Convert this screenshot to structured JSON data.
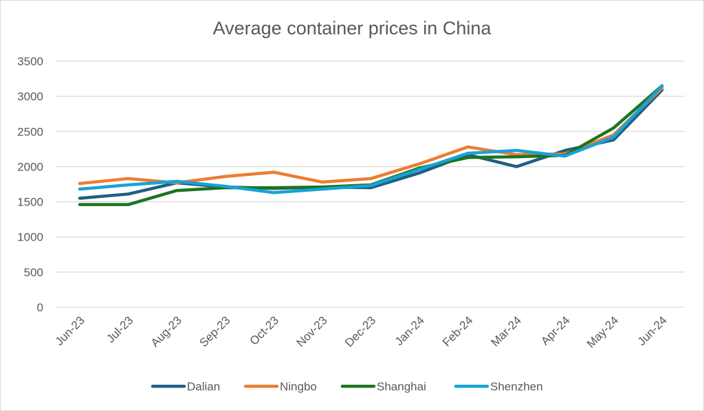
{
  "chart_data": {
    "type": "line",
    "title": "Average container prices in China",
    "xlabel": "",
    "ylabel": "",
    "ylim": [
      0,
      3500
    ],
    "yticks": [
      0,
      500,
      1000,
      1500,
      2000,
      2500,
      3000,
      3500
    ],
    "grid": true,
    "legend_position": "bottom",
    "categories": [
      "Jun-23",
      "Jul-23",
      "Aug-23",
      "Sep-23",
      "Oct-23",
      "Nov-23",
      "Dec-23",
      "Jan-24",
      "Feb-24",
      "Mar-24",
      "Apr-24",
      "May-24",
      "Jun-24"
    ],
    "series": [
      {
        "name": "Dalian",
        "color": "#1f5f82",
        "values": [
          1550,
          1610,
          1770,
          1710,
          1690,
          1710,
          1700,
          1910,
          2170,
          2000,
          2230,
          2380,
          3090
        ]
      },
      {
        "name": "Ningbo",
        "color": "#ed7d31",
        "values": [
          1760,
          1830,
          1770,
          1860,
          1920,
          1780,
          1830,
          2040,
          2280,
          2170,
          2180,
          2450,
          3120
        ]
      },
      {
        "name": "Shanghai",
        "color": "#1e7320",
        "values": [
          1460,
          1460,
          1660,
          1700,
          1700,
          1710,
          1740,
          1980,
          2130,
          2140,
          2160,
          2550,
          3150
        ]
      },
      {
        "name": "Shenzhen",
        "color": "#17a2d8",
        "values": [
          1680,
          1740,
          1790,
          1720,
          1630,
          1680,
          1730,
          1960,
          2190,
          2230,
          2150,
          2420,
          3150
        ]
      }
    ]
  }
}
